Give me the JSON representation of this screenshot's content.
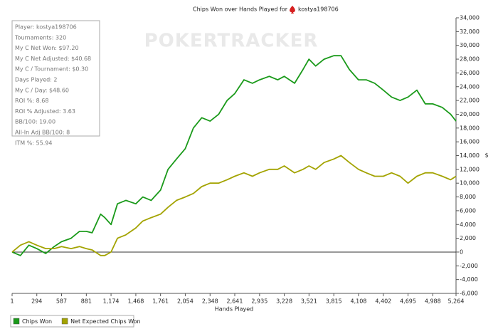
{
  "chart_data": {
    "type": "line",
    "title": "Chips Won over Hands Played for",
    "player": "kostya198706",
    "watermark": "POKERTRACKER",
    "x_label": "Hands Played",
    "y_label": "$",
    "stats": [
      "Player: kostya198706",
      "Tournaments: 320",
      "My C Net Won: $97.20",
      "My C Net Adjusted: $40.68",
      "My C / Tournament: $0.30",
      "Days Played: 2",
      "My C / Day: $48.60",
      "ROI %: 8.68",
      "ROI % Adjusted: 3.63",
      "BB/100: 19.00",
      "All-In Adj BB/100: 8",
      "ITM %: 55.94"
    ],
    "x": [
      1,
      100,
      200,
      294,
      400,
      500,
      587,
      700,
      800,
      881,
      950,
      1050,
      1100,
      1174,
      1250,
      1350,
      1468,
      1550,
      1650,
      1761,
      1850,
      1950,
      2054,
      2150,
      2250,
      2348,
      2450,
      2550,
      2641,
      2750,
      2850,
      2935,
      3050,
      3150,
      3228,
      3350,
      3450,
      3521,
      3600,
      3700,
      3815,
      3900,
      4000,
      4108,
      4200,
      4300,
      4402,
      4500,
      4600,
      4695,
      4800,
      4900,
      4988,
      5100,
      5200,
      5264
    ],
    "series": [
      {
        "name": "Chips Won",
        "color": "#1a9a1a",
        "values": [
          0,
          -500,
          1000,
          500,
          -200,
          800,
          1500,
          2000,
          3000,
          3000,
          2800,
          5500,
          5000,
          4000,
          7000,
          7500,
          7000,
          8000,
          7500,
          9000,
          12000,
          13500,
          15000,
          18000,
          19500,
          19000,
          20000,
          22000,
          23000,
          25000,
          24500,
          25000,
          25500,
          25000,
          25500,
          24500,
          26500,
          28000,
          27000,
          28000,
          28500,
          28500,
          26500,
          25000,
          25000,
          24500,
          23500,
          22500,
          22000,
          22500,
          23500,
          21500,
          21500,
          21000,
          20000,
          19000
        ]
      },
      {
        "name": "Net Expected Chips Won",
        "color": "#a3a300",
        "values": [
          0,
          1000,
          1500,
          1000,
          500,
          500,
          800,
          500,
          800,
          500,
          300,
          -500,
          -500,
          0,
          2000,
          2500,
          3500,
          4500,
          5000,
          5500,
          6500,
          7500,
          8000,
          8500,
          9500,
          10000,
          10000,
          10500,
          11000,
          11500,
          11000,
          11500,
          12000,
          12000,
          12500,
          11500,
          12000,
          12500,
          12000,
          13000,
          13500,
          14000,
          13000,
          12000,
          11500,
          11000,
          11000,
          11500,
          11000,
          10000,
          11000,
          11500,
          11500,
          11000,
          10500,
          11000
        ]
      }
    ],
    "xlim": [
      1,
      5264
    ],
    "xticks": [
      1,
      294,
      587,
      881,
      {
        "value": 1174,
        "label": "1,174"
      },
      {
        "value": 1468,
        "label": "1,468"
      },
      {
        "value": 1761,
        "label": "1,761"
      },
      {
        "value": 2054,
        "label": "2,054"
      },
      {
        "value": 2348,
        "label": "2,348"
      },
      {
        "value": 2641,
        "label": "2,641"
      },
      {
        "value": 2935,
        "label": "2,935"
      },
      {
        "value": 3228,
        "label": "3,228"
      },
      {
        "value": 3521,
        "label": "3,521"
      },
      {
        "value": 3815,
        "label": "3,815"
      },
      {
        "value": 4108,
        "label": "4,108"
      },
      {
        "value": 4402,
        "label": "4,402"
      },
      {
        "value": 4695,
        "label": "4,695"
      },
      {
        "value": 4988,
        "label": "4,988"
      },
      {
        "value": 5264,
        "label": "5,264"
      }
    ],
    "ylim": [
      -6000,
      34000
    ],
    "yticks": [
      {
        "value": -6000,
        "label": "-6,000"
      },
      {
        "value": -4000,
        "label": "-4,000"
      },
      {
        "value": -2000,
        "label": "-2,000"
      },
      0,
      {
        "value": 2000,
        "label": "2,000"
      },
      {
        "value": 4000,
        "label": "4,000"
      },
      {
        "value": 6000,
        "label": "6,000"
      },
      {
        "value": 8000,
        "label": "8,000"
      },
      {
        "value": 10000,
        "label": "10,000"
      },
      {
        "value": 12000,
        "label": "12,000"
      },
      {
        "value": 14000,
        "label": "14,000"
      },
      {
        "value": 16000,
        "label": "16,000"
      },
      {
        "value": 18000,
        "label": "18,000"
      },
      {
        "value": 20000,
        "label": "20,000"
      },
      {
        "value": 22000,
        "label": "22,000"
      },
      {
        "value": 24000,
        "label": "24,000"
      },
      {
        "value": 26000,
        "label": "26,000"
      },
      {
        "value": 28000,
        "label": "28,000"
      },
      {
        "value": 30000,
        "label": "30,000"
      },
      {
        "value": 32000,
        "label": "32,000"
      },
      {
        "value": 34000,
        "label": "34,000"
      }
    ],
    "grid": false
  }
}
